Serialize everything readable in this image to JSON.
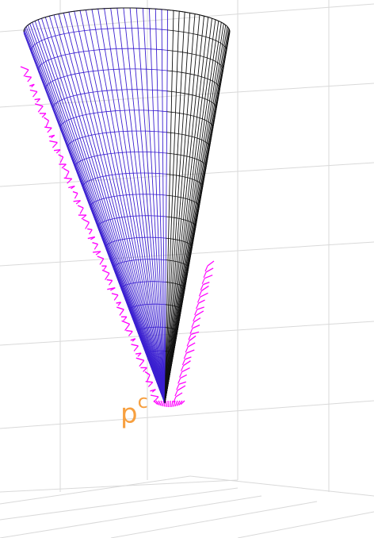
{
  "figure": {
    "label_base": "p",
    "label_sup": "c",
    "colors": {
      "grid": "#d9d9d9",
      "mesh_front": "#3a1fd0",
      "mesh_back": "#111111",
      "normals": "#ff00ff",
      "label": "#f7a040"
    }
  }
}
